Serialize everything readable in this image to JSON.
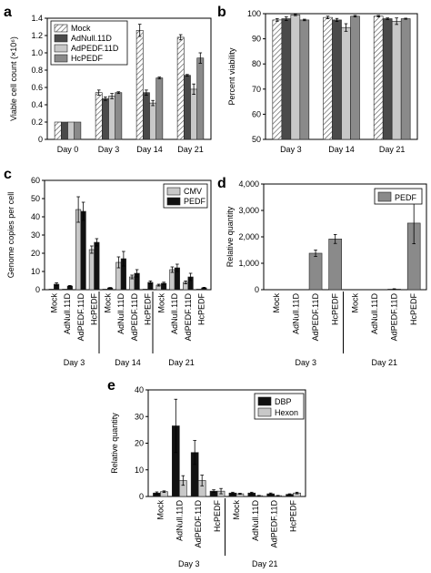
{
  "colors": {
    "mock_hatch_fg": "#555555",
    "mock_hatch_bg": "#ffffff",
    "adnull": "#4a4a4a",
    "adpedf": "#c8c8c8",
    "hcpedf": "#8a8a8a",
    "cmv": "#c8c8c8",
    "pedf_dark": "#111111",
    "pedf_mid": "#8a8a8a",
    "dbp": "#111111",
    "hexon": "#c8c8c8"
  },
  "chart_data": [
    {
      "panel": "a",
      "type": "bar",
      "ylabel": "Viable cell count (×10⁶)",
      "ylim": [
        0,
        1.4
      ],
      "yticks": [
        "0",
        "0.2",
        "0.4",
        "0.6",
        "0.8",
        "1.0",
        "1.2",
        "1.4"
      ],
      "categories": [
        "Day 0",
        "Day 3",
        "Day 14",
        "Day 21"
      ],
      "legend_position": "top-left",
      "series": [
        {
          "name": "Mock",
          "values": [
            0.2,
            0.54,
            1.26,
            1.18
          ],
          "errors": [
            0,
            0.03,
            0.07,
            0.03
          ]
        },
        {
          "name": "AdNull.11D",
          "values": [
            0.2,
            0.47,
            0.54,
            0.74
          ],
          "errors": [
            0,
            0.02,
            0.03,
            0.01
          ]
        },
        {
          "name": "AdPEDF.11D",
          "values": [
            0.2,
            0.5,
            0.42,
            0.58
          ],
          "errors": [
            0,
            0.03,
            0.03,
            0.06
          ]
        },
        {
          "name": "HcPEDF",
          "values": [
            0.2,
            0.54,
            0.71,
            0.94
          ],
          "errors": [
            0,
            0.01,
            0.01,
            0.06
          ]
        }
      ]
    },
    {
      "panel": "b",
      "type": "bar",
      "ylabel": "Percent viability",
      "ylim": [
        50,
        100
      ],
      "yticks": [
        "50",
        "60",
        "70",
        "80",
        "90",
        "100"
      ],
      "categories": [
        "Day 3",
        "Day 14",
        "Day 21"
      ],
      "series": [
        {
          "name": "Mock",
          "values": [
            97.5,
            98.5,
            99
          ],
          "errors": [
            0.5,
            0.5,
            0.3
          ]
        },
        {
          "name": "AdNull.11D",
          "values": [
            98,
            97.5,
            98
          ],
          "errors": [
            0.7,
            0.6,
            0.3
          ]
        },
        {
          "name": "AdPEDF.11D",
          "values": [
            99.5,
            94.5,
            97
          ],
          "errors": [
            0.3,
            1.5,
            1.3
          ]
        },
        {
          "name": "HcPEDF",
          "values": [
            97.5,
            99,
            98
          ],
          "errors": [
            0.3,
            0.3,
            0.2
          ]
        }
      ]
    },
    {
      "panel": "c",
      "type": "bar",
      "ylabel": "Genome copies per cell",
      "ylim": [
        0,
        60
      ],
      "yticks": [
        "0",
        "10",
        "20",
        "30",
        "40",
        "50",
        "60"
      ],
      "groups": [
        "Day 3",
        "Day 14",
        "Day 21"
      ],
      "categories": [
        "Mock",
        "AdNull.11D",
        "AdPEDF.11D",
        "HcPEDF",
        "Mock",
        "AdNull.11D",
        "AdPEDF.11D",
        "HcPEDF",
        "Mock",
        "AdNull.11D",
        "AdPEDF.11D",
        "HcPEDF"
      ],
      "legend_position": "top-right",
      "series": [
        {
          "name": "CMV",
          "values": [
            0.3,
            0.3,
            44,
            22,
            0.3,
            15,
            7,
            0.3,
            2.5,
            11,
            4,
            0.3
          ],
          "errors": [
            0,
            0,
            7,
            2,
            0,
            3,
            1,
            0,
            0.5,
            1.5,
            0.8,
            0
          ]
        },
        {
          "name": "PEDF",
          "values": [
            3,
            2,
            43,
            26,
            1,
            17,
            9,
            4,
            3.5,
            12,
            7,
            1
          ],
          "errors": [
            0.8,
            0.3,
            5,
            2,
            0.2,
            4,
            2,
            0.8,
            0.6,
            2,
            2,
            0.3
          ]
        }
      ]
    },
    {
      "panel": "d",
      "type": "bar",
      "ylabel": "Relative quantity",
      "ylim": [
        0,
        4000
      ],
      "yticks": [
        "0",
        "1,000",
        "2,000",
        "3,000",
        "4,000"
      ],
      "groups": [
        "Day 3",
        "Day 21"
      ],
      "categories": [
        "Mock",
        "AdNull.11D",
        "AdPEDF.11D",
        "HcPEDF",
        "Mock",
        "AdNull.11D",
        "AdPEDF.11D",
        "HcPEDF"
      ],
      "legend_position": "top-right",
      "series": [
        {
          "name": "PEDF",
          "values": [
            0,
            0,
            1380,
            1920,
            0,
            0,
            20,
            2520
          ],
          "errors": [
            0,
            0,
            120,
            170,
            0,
            0,
            15,
            780
          ]
        }
      ]
    },
    {
      "panel": "e",
      "type": "bar",
      "ylabel": "Relative quantity",
      "ylim": [
        0,
        40
      ],
      "yticks": [
        "0",
        "10",
        "20",
        "30",
        "40"
      ],
      "groups": [
        "Day 3",
        "Day 21"
      ],
      "categories": [
        "Mock",
        "AdNull.11D",
        "AdPEDF.11D",
        "HcPEDF",
        "Mock",
        "AdNull.11D",
        "AdPEDF.11D",
        "HcPEDF"
      ],
      "legend_position": "top-right",
      "series": [
        {
          "name": "DBP",
          "values": [
            1.3,
            26.5,
            16.5,
            2,
            1.3,
            1.3,
            1,
            0.8
          ],
          "errors": [
            0.4,
            10,
            4.5,
            0.5,
            0.3,
            0.3,
            0.3,
            0.2
          ]
        },
        {
          "name": "Hexon",
          "values": [
            1.8,
            6,
            6,
            2,
            1,
            0.3,
            0.3,
            1.3
          ],
          "errors": [
            0.3,
            1.8,
            2,
            1,
            0.2,
            0.1,
            0.1,
            0.3
          ]
        }
      ]
    }
  ]
}
